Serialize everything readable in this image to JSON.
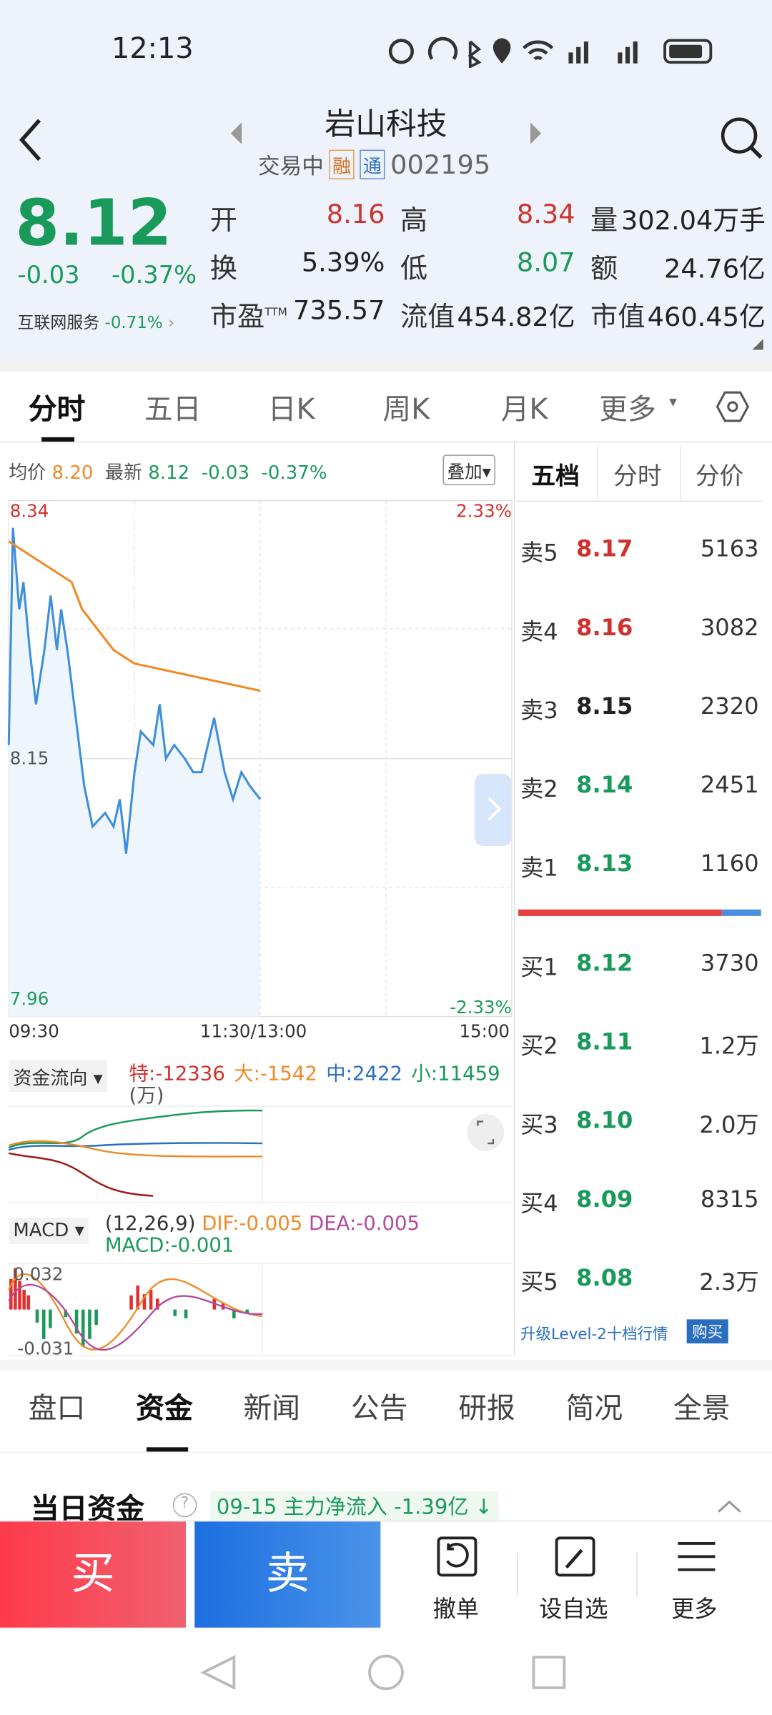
{
  "status_bar": {
    "time": "12:13"
  },
  "header": {
    "title": "岩山科技",
    "status": "交易中",
    "badges": [
      "融",
      "通"
    ],
    "code": "002195"
  },
  "quote": {
    "price": "8.12",
    "change": "-0.03",
    "change_pct": "-0.37%",
    "sector": "互联网服务",
    "sector_pct": "-0.71%"
  },
  "stats": [
    {
      "label": "开",
      "value": "8.16",
      "color": "#d0312d"
    },
    {
      "label": "高",
      "value": "8.34",
      "color": "#d0312d"
    },
    {
      "label": "量",
      "value": "302.04万手",
      "color": "#222"
    },
    {
      "label": "换",
      "value": "5.39%",
      "color": "#222"
    },
    {
      "label": "低",
      "value": "8.07",
      "color": "#1a9a5a"
    },
    {
      "label": "额",
      "value": "24.76亿",
      "color": "#222"
    },
    {
      "label": "市盈",
      "sup": "TTM",
      "value": "735.57",
      "color": "#222"
    },
    {
      "label": "流值",
      "value": "454.82亿",
      "color": "#222"
    },
    {
      "label": "市值",
      "value": "460.45亿",
      "color": "#222"
    }
  ],
  "chart_tabs": [
    "分时",
    "五日",
    "日K",
    "周K",
    "月K",
    "更多"
  ],
  "intraday": {
    "legend": {
      "avg_label": "均价",
      "avg": "8.20",
      "last_label": "最新",
      "last": "8.12",
      "change": "-0.03",
      "change_pct": "-0.37%"
    },
    "overlay_button": "叠加",
    "ylim": [
      7.96,
      8.34
    ],
    "yticks": [
      8.34,
      8.15,
      7.96
    ],
    "pct_labels": [
      "2.33%",
      "-2.33%"
    ],
    "xlim": [
      0,
      240
    ],
    "xlabels": [
      "09:30",
      "11:30/13:00",
      "15:00"
    ],
    "price": {
      "color": "#3d8fdc",
      "x": [
        0,
        2,
        5,
        7,
        10,
        13,
        17,
        20,
        23,
        25,
        28,
        32,
        36,
        40,
        46,
        50,
        53,
        56,
        60,
        63,
        69,
        72,
        75,
        79,
        84,
        88,
        92,
        98,
        103,
        107,
        111,
        115,
        120
      ],
      "values": [
        8.16,
        8.32,
        8.26,
        8.28,
        8.23,
        8.19,
        8.23,
        8.27,
        8.23,
        8.26,
        8.23,
        8.18,
        8.13,
        8.1,
        8.11,
        8.1,
        8.12,
        8.08,
        8.14,
        8.17,
        8.16,
        8.19,
        8.15,
        8.16,
        8.15,
        8.14,
        8.14,
        8.18,
        8.14,
        8.12,
        8.14,
        8.13,
        8.12
      ]
    },
    "avg": {
      "color": "#f08a24",
      "x": [
        0,
        10,
        20,
        30,
        35,
        40,
        50,
        60,
        75,
        90,
        105,
        120
      ],
      "values": [
        8.31,
        8.3,
        8.29,
        8.28,
        8.26,
        8.25,
        8.23,
        8.22,
        8.215,
        8.21,
        8.205,
        8.2
      ]
    }
  },
  "fund_flow": {
    "selector": "资金流向",
    "items": [
      {
        "text": "特:-12336",
        "color": "#d0312d"
      },
      {
        "text": "大:-1542",
        "color": "#f08a24"
      },
      {
        "text": "中:2422",
        "color": "#2a6ec0"
      },
      {
        "text": "小:11459",
        "color": "#1a9a5a"
      }
    ],
    "unit": "(万)"
  },
  "macd": {
    "selector": "MACD",
    "params": "(12,26,9)",
    "dif": "DIF:-0.005",
    "dea": "DEA:-0.005",
    "macd": "MACD:-0.001",
    "top": "0.032",
    "bottom": "-0.031"
  },
  "order_book": {
    "tabs": [
      "五档",
      "分时",
      "分价"
    ],
    "sells": [
      {
        "label": "卖5",
        "price": "8.17",
        "volume": "5163",
        "color": "#d0312d"
      },
      {
        "label": "卖4",
        "price": "8.16",
        "volume": "3082",
        "color": "#d0312d"
      },
      {
        "label": "卖3",
        "price": "8.15",
        "volume": "2320",
        "color": "#222"
      },
      {
        "label": "卖2",
        "price": "8.14",
        "volume": "2451",
        "color": "#1a9a5a"
      },
      {
        "label": "卖1",
        "price": "8.13",
        "volume": "1160",
        "color": "#1a9a5a"
      }
    ],
    "buys": [
      {
        "label": "买1",
        "price": "8.12",
        "volume": "3730",
        "color": "#1a9a5a"
      },
      {
        "label": "买2",
        "price": "8.11",
        "volume": "1.2万",
        "color": "#1a9a5a"
      },
      {
        "label": "买3",
        "price": "8.10",
        "volume": "2.0万",
        "color": "#1a9a5a"
      },
      {
        "label": "买4",
        "price": "8.09",
        "volume": "8315",
        "color": "#1a9a5a"
      },
      {
        "label": "买5",
        "price": "8.08",
        "volume": "2.3万",
        "color": "#1a9a5a"
      }
    ],
    "upgrade": "升级Level-2十档行情",
    "buy_button": "购买"
  },
  "detail_tabs": [
    "盘口",
    "资金",
    "新闻",
    "公告",
    "研报",
    "简况",
    "全景"
  ],
  "funds_section": {
    "title": "当日资金",
    "note": "09-15 主力净流入 -1.39亿"
  },
  "bottom_bar": {
    "buy": "买",
    "sell": "卖",
    "actions": [
      "撤单",
      "设自选",
      "更多"
    ]
  }
}
